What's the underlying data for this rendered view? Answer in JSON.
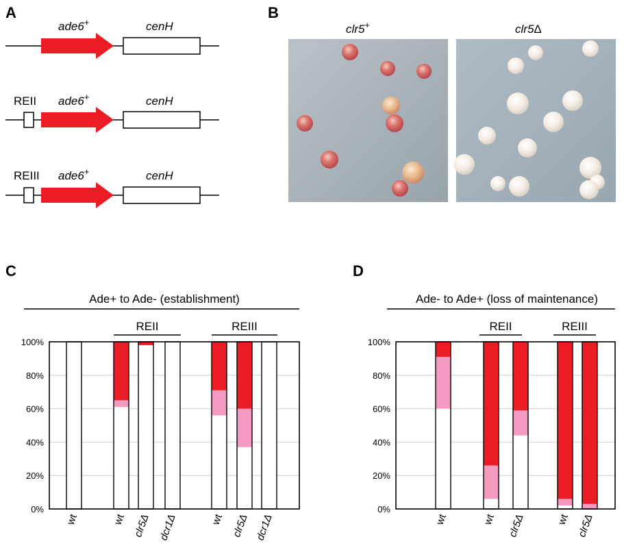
{
  "panels": {
    "a": "A",
    "b": "B",
    "c": "C",
    "d": "D"
  },
  "panel_a": {
    "gene": "ade6",
    "plus": "+",
    "cen": "cenH",
    "elements": [
      "",
      "REII",
      "REIII"
    ]
  },
  "panel_b": {
    "left_label_base": "clr5",
    "left_label_sup": "+",
    "right_label_base": "clr5",
    "right_label_sym": "Δ",
    "left_colonies": "red/pink colonies on grey agar",
    "right_colonies": "white colonies on grey agar"
  },
  "colors": {
    "red": "#ec1c24",
    "pink": "#f49ac1",
    "white": "#ffffff",
    "agar": "#a9b4bc"
  },
  "chart_data": [
    {
      "type": "bar",
      "title": "Ade+ to Ade- (establishment)",
      "groups": [
        {
          "label": "REII",
          "bars": [
            1,
            2,
            3
          ]
        },
        {
          "label": "REIII",
          "bars": [
            4,
            5,
            6
          ]
        }
      ],
      "categories": [
        "wt",
        "wt",
        "clr5Δ",
        "dcr1Δ",
        "wt",
        "clr5Δ",
        "dcr1Δ"
      ],
      "category_italic": [
        false,
        false,
        true,
        true,
        false,
        true,
        true
      ],
      "series": [
        {
          "name": "white",
          "values": [
            100,
            61,
            98,
            100,
            56,
            37,
            100
          ]
        },
        {
          "name": "pink",
          "values": [
            0,
            4,
            0,
            0,
            15,
            23,
            0
          ]
        },
        {
          "name": "red",
          "values": [
            0,
            35,
            2,
            0,
            29,
            40,
            0
          ]
        }
      ],
      "yticks": [
        "0%",
        "20%",
        "40%",
        "60%",
        "80%",
        "100%"
      ],
      "ylim": [
        0,
        100
      ],
      "grid": true
    },
    {
      "type": "bar",
      "title": "Ade- to Ade+ (loss of maintenance)",
      "groups": [
        {
          "label": "REII",
          "bars": [
            1,
            2
          ]
        },
        {
          "label": "REIII",
          "bars": [
            3,
            4
          ]
        }
      ],
      "categories": [
        "wt",
        "wt",
        "clr5Δ",
        "wt",
        "clr5Δ"
      ],
      "category_italic": [
        false,
        false,
        true,
        false,
        true
      ],
      "series": [
        {
          "name": "white",
          "values": [
            60,
            6,
            44,
            2,
            0
          ]
        },
        {
          "name": "pink",
          "values": [
            31,
            20,
            15,
            4,
            3
          ]
        },
        {
          "name": "red",
          "values": [
            9,
            74,
            41,
            94,
            97
          ]
        }
      ],
      "yticks": [
        "0%",
        "20%",
        "40%",
        "60%",
        "80%",
        "100%"
      ],
      "ylim": [
        0,
        100
      ],
      "grid": true
    }
  ]
}
